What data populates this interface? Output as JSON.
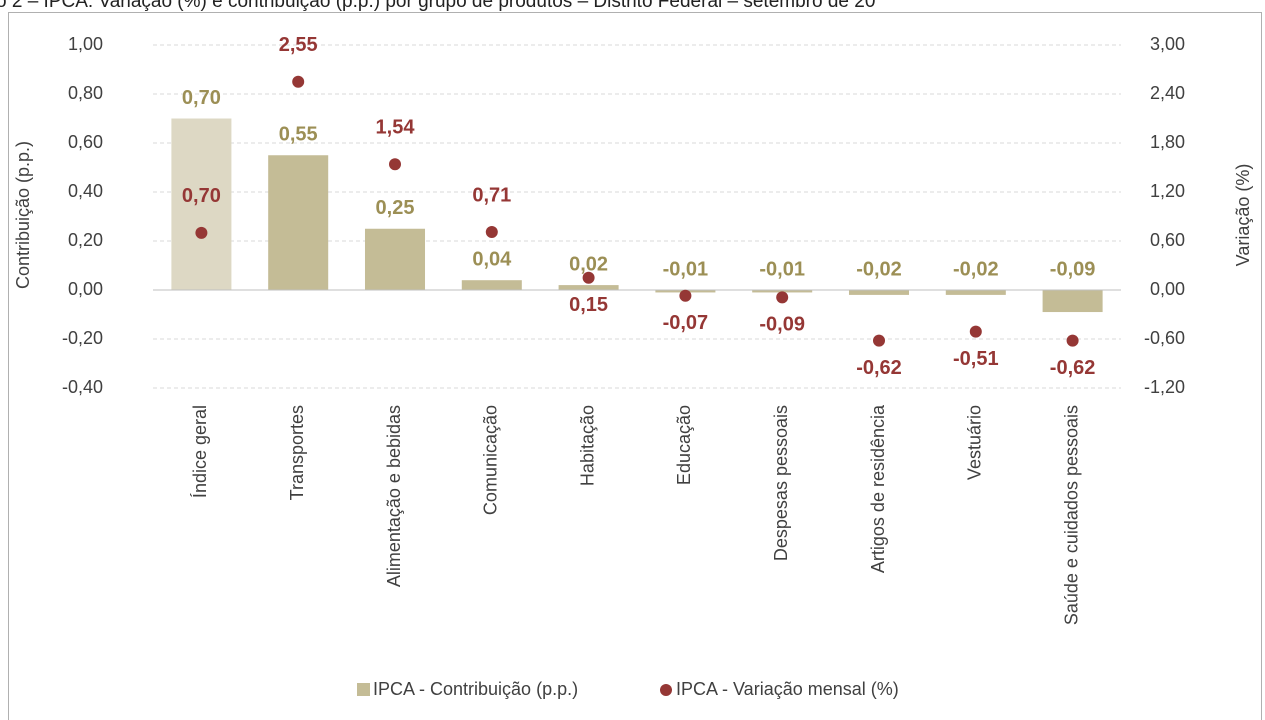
{
  "chart_data": {
    "type": "bar_dot",
    "title": "o 2 – IPCA: Variação (%) e contribuição (p.p.) por grupo de produtos – Distrito Federal – setembro de 20",
    "ylabel": "Contribuição (p.p.)",
    "y2label": "Variação (%)",
    "categories": [
      "Índice geral",
      "Transportes",
      "Alimentação e bebidas",
      "Comunicação",
      "Habitação",
      "Educação",
      "Despesas pessoais",
      "Artigos de residência",
      "Vestuário",
      "Saúde e cuidados pessoais"
    ],
    "series": [
      {
        "name": "IPCA - Contribuição (p.p.)",
        "color": "#c4bc96",
        "colors": [
          "#ddd8c4",
          "#c4bc96",
          "#c4bc96",
          "#c4bc96",
          "#c4bc96",
          "#c4bc96",
          "#c4bc96",
          "#c4bc96",
          "#c4bc96",
          "#c4bc96"
        ],
        "label_color": "#9c8f55",
        "values": [
          0.7,
          0.55,
          0.25,
          0.04,
          0.02,
          -0.01,
          -0.01,
          -0.02,
          -0.02,
          -0.09
        ],
        "value_labels": [
          "0,70",
          "0,55",
          "0,25",
          "0,04",
          "0,02",
          "-0,01",
          "-0,01",
          "-0,02",
          "-0,02",
          "-0,09"
        ]
      },
      {
        "name": "IPCA - Variação mensal (%)",
        "color": "#953735",
        "axis": "y2",
        "values": [
          0.7,
          2.55,
          1.54,
          0.71,
          0.15,
          -0.07,
          -0.09,
          -0.62,
          -0.51,
          -0.62
        ],
        "value_labels": [
          "0,70",
          "2,55",
          "1,54",
          "0,71",
          "0,15",
          "-0,07",
          "-0,09",
          "-0,62",
          "-0,51",
          "-0,62"
        ]
      }
    ],
    "ylim": [
      -0.4,
      1.0
    ],
    "yticks": [
      {
        "value": 1.0,
        "label": "1,00"
      },
      {
        "value": 0.8,
        "label": "0,80"
      },
      {
        "value": 0.6,
        "label": "0,60"
      },
      {
        "value": 0.4,
        "label": "0,40"
      },
      {
        "value": 0.2,
        "label": "0,20"
      },
      {
        "value": 0,
        "label": "0,00"
      },
      {
        "value": -0.2,
        "label": "-0,20"
      },
      {
        "value": -0.4,
        "label": "-0,40"
      }
    ],
    "y2lim": [
      -1.2,
      3.0
    ],
    "y2ticks": [
      {
        "value": 3.0,
        "label": "3,00"
      },
      {
        "value": 2.4,
        "label": "2,40"
      },
      {
        "value": 1.8,
        "label": "1,80"
      },
      {
        "value": 1.2,
        "label": "1,20"
      },
      {
        "value": 0.6,
        "label": "0,60"
      },
      {
        "value": 0,
        "label": "0,00"
      },
      {
        "value": -0.6,
        "label": "-0,60"
      },
      {
        "value": -1.2,
        "label": "-1,20"
      }
    ],
    "grid": true,
    "legend": "bottom"
  }
}
